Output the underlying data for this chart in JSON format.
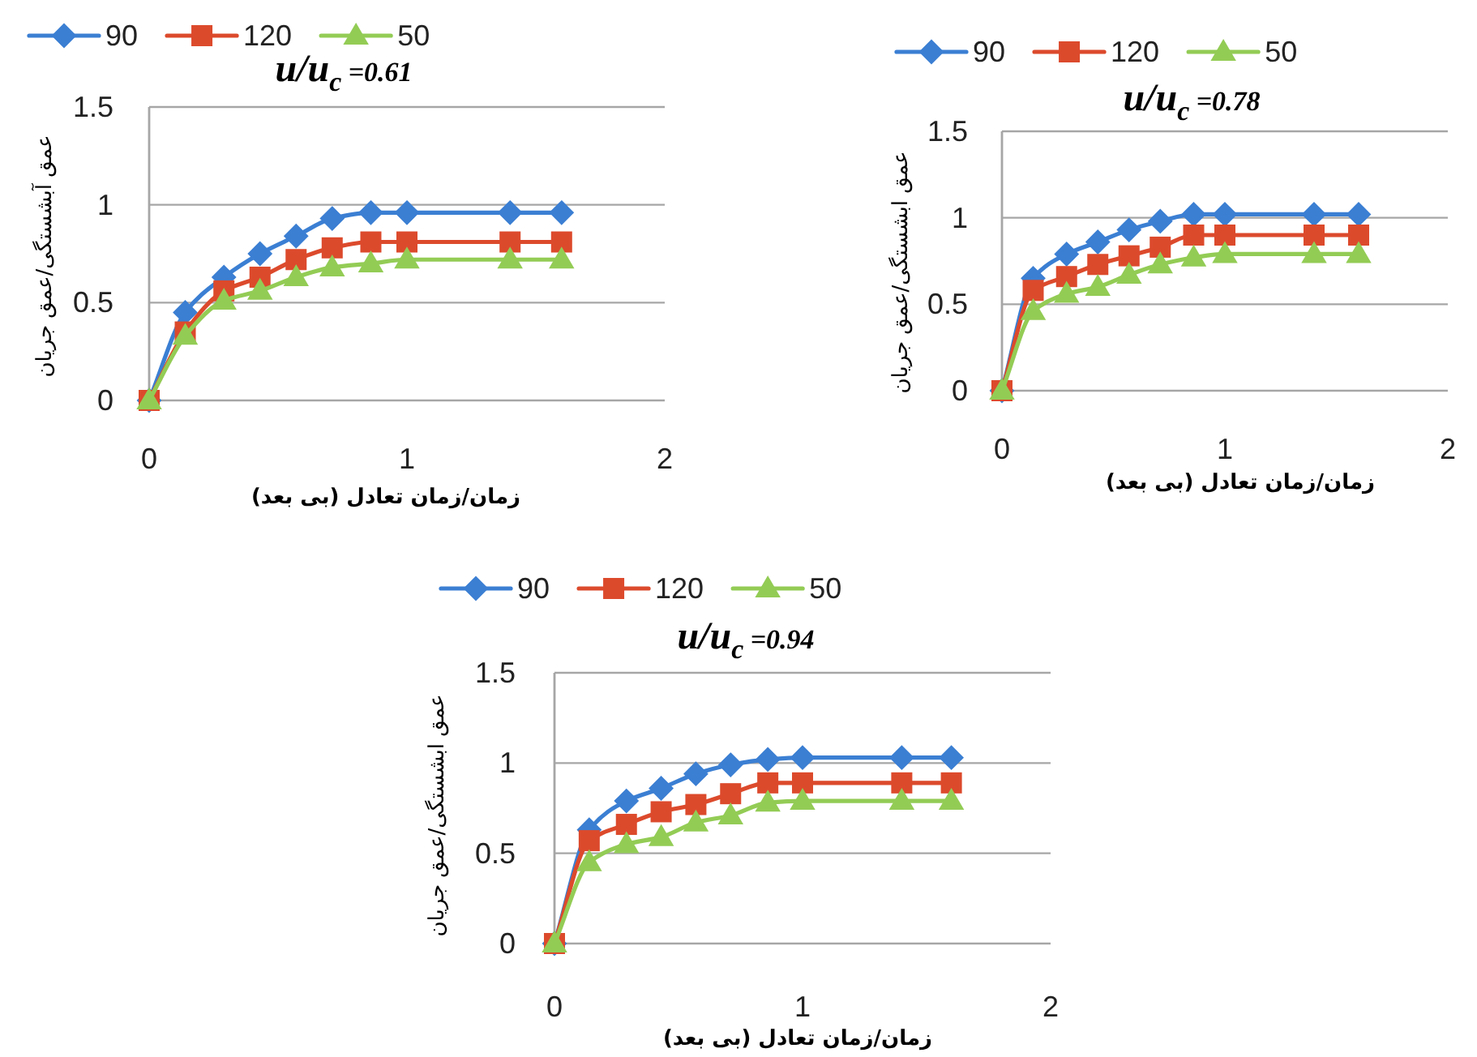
{
  "chart_data": [
    {
      "type": "line",
      "title": "u/u$_{c}$ =0.61",
      "xlabel": "زمان/زمان تعادل (بی بعد)",
      "ylabel": "عمق آبشستگی/عمق جریان",
      "x": [
        0,
        0.14,
        0.29,
        0.43,
        0.57,
        0.71,
        0.86,
        1,
        1.4,
        1.6
      ],
      "series": [
        {
          "name": "90",
          "color": "#3b7fd3",
          "marker": "diamond",
          "values": [
            0,
            0.45,
            0.63,
            0.75,
            0.84,
            0.93,
            0.96,
            0.96,
            0.96,
            0.96
          ]
        },
        {
          "name": "120",
          "color": "#dc4a2c",
          "marker": "square",
          "values": [
            0,
            0.35,
            0.56,
            0.63,
            0.72,
            0.78,
            0.81,
            0.81,
            0.81,
            0.81
          ]
        },
        {
          "name": "50",
          "color": "#93cc55",
          "marker": "triangle",
          "values": [
            0,
            0.33,
            0.51,
            0.56,
            0.63,
            0.68,
            0.7,
            0.72,
            0.72,
            0.72
          ]
        }
      ],
      "xlim": [
        0,
        2
      ],
      "ylim": [
        0,
        1.5
      ],
      "xticks": [
        0,
        1,
        2
      ],
      "yticks": [
        0,
        0.5,
        1,
        1.5
      ],
      "grid": "y",
      "legend": "top"
    },
    {
      "type": "line",
      "title": "u/u$_{c}$ =0.78",
      "xlabel": "زمان/زمان تعادل (بی بعد)",
      "ylabel": "عمق ابشستگی/عمق جریان",
      "x": [
        0,
        0.14,
        0.29,
        0.43,
        0.57,
        0.71,
        0.86,
        1,
        1.4,
        1.6
      ],
      "series": [
        {
          "name": "90",
          "color": "#3b7fd3",
          "marker": "diamond",
          "values": [
            0,
            0.65,
            0.79,
            0.86,
            0.93,
            0.98,
            1.02,
            1.02,
            1.02,
            1.02
          ]
        },
        {
          "name": "120",
          "color": "#dc4a2c",
          "marker": "square",
          "values": [
            0,
            0.58,
            0.66,
            0.73,
            0.78,
            0.83,
            0.9,
            0.9,
            0.9,
            0.9
          ]
        },
        {
          "name": "50",
          "color": "#93cc55",
          "marker": "triangle",
          "values": [
            0,
            0.46,
            0.56,
            0.6,
            0.67,
            0.73,
            0.77,
            0.79,
            0.79,
            0.79
          ]
        }
      ],
      "xlim": [
        0,
        2
      ],
      "ylim": [
        0,
        1.5
      ],
      "xticks": [
        0,
        1,
        2
      ],
      "yticks": [
        0,
        0.5,
        1,
        1.5
      ],
      "grid": "y",
      "legend": "top"
    },
    {
      "type": "line",
      "title": "u/u$_{c}$ =0.94",
      "xlabel": "زمان/زمان تعادل (بی بعد)",
      "ylabel": "عمق ابشستگی/عمق جریان",
      "x": [
        0,
        0.14,
        0.29,
        0.43,
        0.57,
        0.71,
        0.86,
        1,
        1.4,
        1.6
      ],
      "series": [
        {
          "name": "90",
          "color": "#3b7fd3",
          "marker": "diamond",
          "values": [
            0,
            0.63,
            0.79,
            0.86,
            0.94,
            0.99,
            1.02,
            1.03,
            1.03,
            1.03
          ]
        },
        {
          "name": "120",
          "color": "#dc4a2c",
          "marker": "square",
          "values": [
            0,
            0.57,
            0.66,
            0.73,
            0.77,
            0.83,
            0.89,
            0.89,
            0.89,
            0.89
          ]
        },
        {
          "name": "50",
          "color": "#93cc55",
          "marker": "triangle",
          "values": [
            0,
            0.45,
            0.55,
            0.59,
            0.67,
            0.71,
            0.78,
            0.79,
            0.79,
            0.79
          ]
        }
      ],
      "xlim": [
        0,
        2
      ],
      "ylim": [
        0,
        1.5
      ],
      "xticks": [
        0,
        1,
        2
      ],
      "yticks": [
        0,
        0.5,
        1,
        1.5
      ],
      "grid": "y",
      "legend": "top"
    }
  ]
}
